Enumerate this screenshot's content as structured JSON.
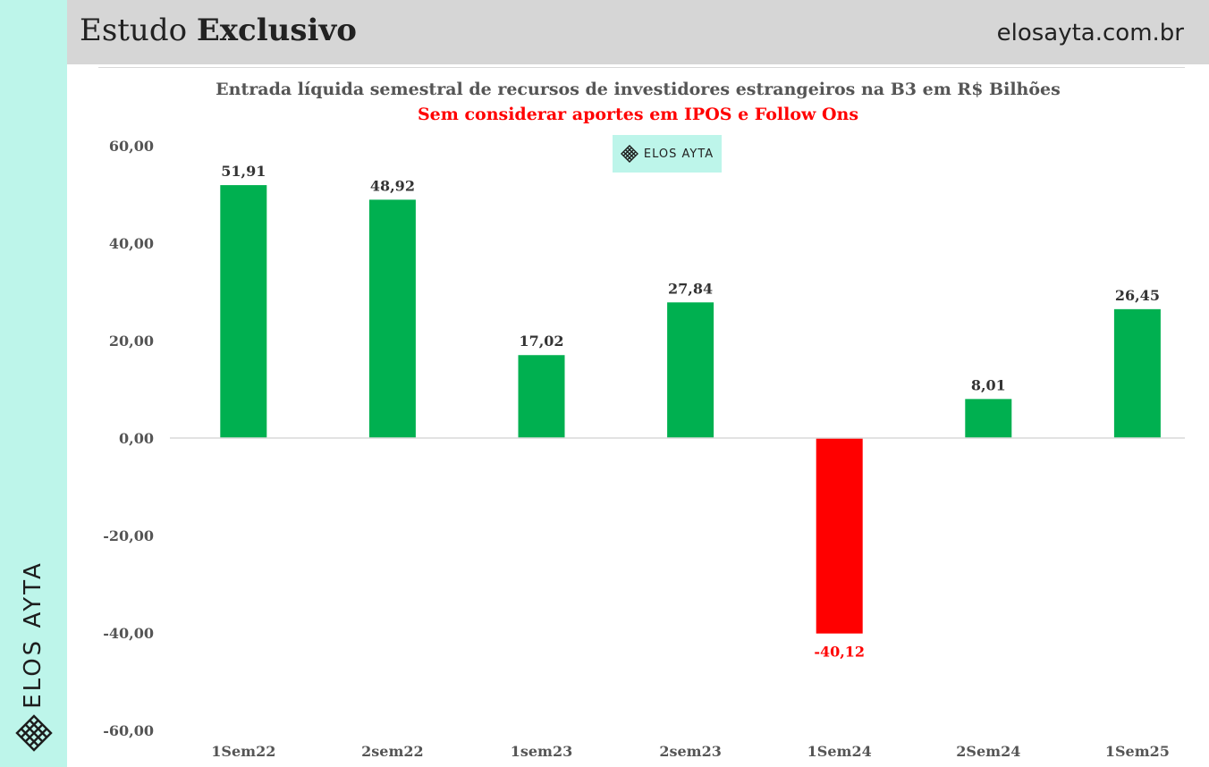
{
  "header": {
    "title_regular": "Estudo ",
    "title_bold": "Exclusivo",
    "url": "elosayta.com.br"
  },
  "brand": {
    "side_text": "ELOS AYTA",
    "badge_text": "ELOS AYTA",
    "accent_color": "#bdf5ea"
  },
  "chart_data": {
    "type": "bar",
    "title": "Entrada líquida semestral de recursos de investidores estrangeiros na B3 em R$ Bilhões",
    "subtitle": "Sem considerar aportes em IPOS e Follow Ons",
    "categories": [
      "1Sem22",
      "2sem22",
      "1sem23",
      "2sem23",
      "1Sem24",
      "2Sem24",
      "1Sem25"
    ],
    "values": [
      51.91,
      48.92,
      17.02,
      27.84,
      -40.12,
      8.01,
      26.45
    ],
    "data_labels": [
      "51,91",
      "48,92",
      "17,02",
      "27,84",
      "-40,12",
      "8,01",
      "26,45"
    ],
    "y_ticks": [
      "60,00",
      "40,00",
      "20,00",
      "0,00",
      "-20,00",
      "-40,00",
      "-60,00"
    ],
    "y_tick_values": [
      60,
      40,
      20,
      0,
      -20,
      -40,
      -60
    ],
    "ylim": [
      -60,
      60
    ],
    "xlabel": "",
    "ylabel": "",
    "grid": false,
    "positive_color": "#00b050",
    "negative_color": "#ff0000"
  }
}
